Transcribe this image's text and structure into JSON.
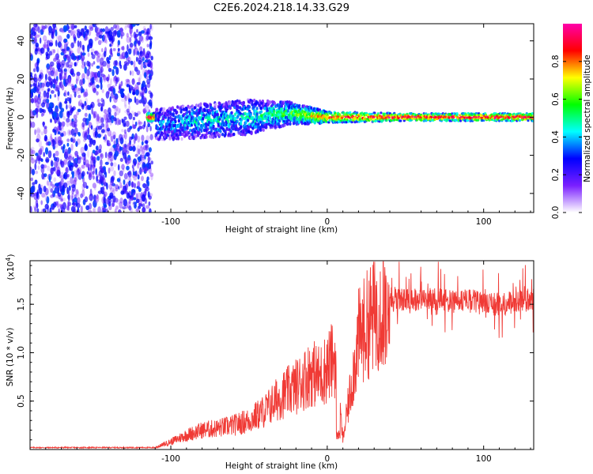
{
  "title": "C2E6.2024.218.14.33.G29",
  "chart_data": [
    {
      "type": "heatmap",
      "xlabel": "Height of straight line (km)",
      "ylabel": "Frequency (Hz)",
      "xlim": [
        -190,
        132
      ],
      "ylim": [
        -50,
        49
      ],
      "xticks": [
        -100,
        0,
        100
      ],
      "yticks": [
        -40,
        -20,
        0,
        20,
        40
      ],
      "description": "Scattered purple noise for x < -112 km; a narrow signal band around 0 Hz from about -115 km onward, broad and blue/green near -100..-20 km, narrowing to a red line near 0 Hz for x > 0 km.",
      "band": [
        {
          "x": -110,
          "center": -4,
          "halfwidth": 8,
          "amp": 0.35
        },
        {
          "x": -80,
          "center": -2,
          "halfwidth": 9,
          "amp": 0.42
        },
        {
          "x": -50,
          "center": 0,
          "halfwidth": 9,
          "amp": 0.45
        },
        {
          "x": -25,
          "center": 2,
          "halfwidth": 6,
          "amp": 0.55
        },
        {
          "x": 0,
          "center": 0,
          "halfwidth": 3,
          "amp": 0.85
        },
        {
          "x": 50,
          "center": 0,
          "halfwidth": 2,
          "amp": 0.95
        },
        {
          "x": 130,
          "center": 0,
          "halfwidth": 2,
          "amp": 0.95
        }
      ],
      "colorbar": {
        "label": "Normalized spectral amplitude",
        "range": [
          0,
          1
        ],
        "ticks": [
          "0.0",
          "0.2",
          "0.4",
          "0.6",
          "0.8"
        ],
        "colors": [
          "#ffffff",
          "#7a1fff",
          "#0000ff",
          "#00ffff",
          "#00ff00",
          "#ffff00",
          "#ff0000",
          "#ff00aa"
        ]
      }
    },
    {
      "type": "line",
      "xlabel": "Height of straight line (km)",
      "ylabel": "SNR (10 * v/v)",
      "y_scale_label": "(x10",
      "y_scale_exp": "4",
      "y_scale_close": ")",
      "xlim": [
        -190,
        132
      ],
      "ylim": [
        0,
        1.95
      ],
      "xticks": [
        -100,
        0,
        100
      ],
      "yticks": [
        "0.5",
        "1.0",
        "1.5"
      ],
      "color": "#f03a35",
      "envelope_x": [
        -190,
        -110,
        -100,
        -90,
        -80,
        -70,
        -60,
        -50,
        -40,
        -30,
        -20,
        -10,
        -5,
        0,
        5,
        10,
        20,
        30,
        40,
        50,
        60,
        70,
        80,
        90,
        100,
        110,
        120,
        132
      ],
      "envelope_y": [
        0.02,
        0.02,
        0.08,
        0.15,
        0.2,
        0.22,
        0.25,
        0.3,
        0.4,
        0.55,
        0.65,
        0.8,
        0.75,
        0.85,
        0.95,
        0.1,
        1.15,
        1.4,
        1.55,
        1.55,
        1.55,
        1.56,
        1.52,
        1.55,
        1.5,
        1.5,
        1.52,
        1.55
      ]
    }
  ]
}
